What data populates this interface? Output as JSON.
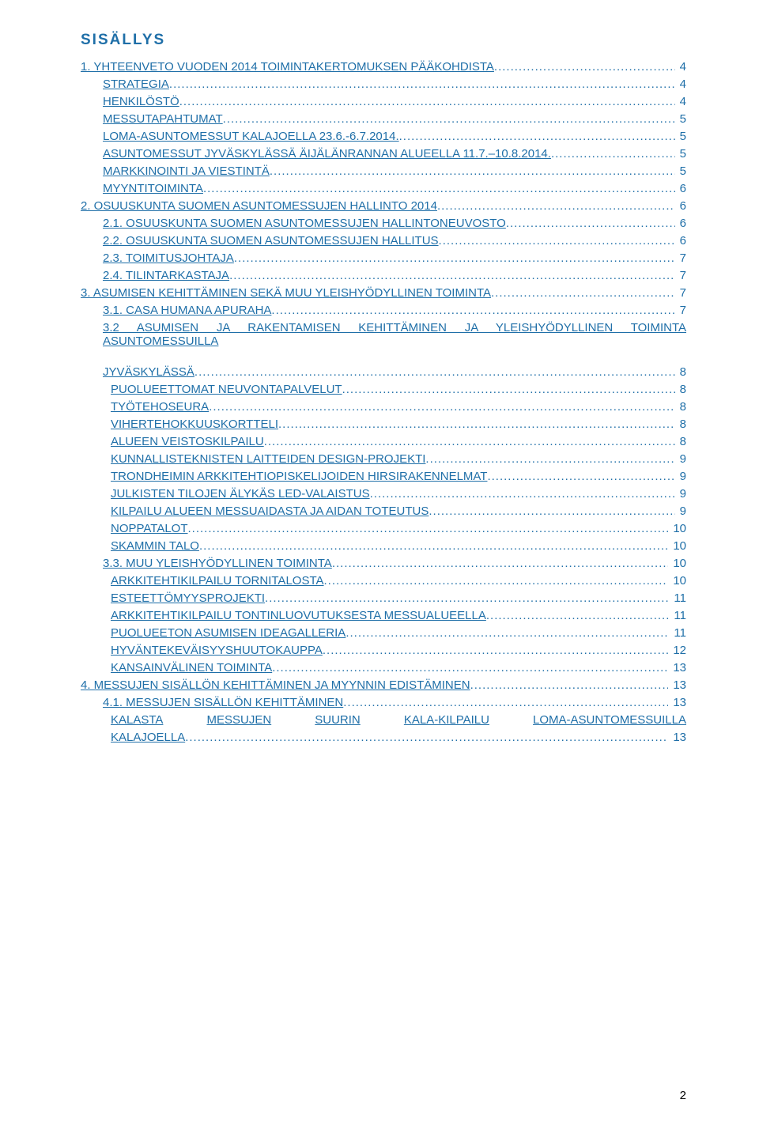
{
  "title": {
    "text": "SISÄLLYS",
    "color": "#1f6fa8",
    "fontsize": 19
  },
  "fontsize": 15,
  "lineheight": 1.1,
  "link_color": "#1f6fa8",
  "toc": [
    {
      "indent": 0,
      "label": "1.  YHTEENVETO VUODEN 2014 TOIMINTAKERTOMUKSEN PÄÄKOHDISTA",
      "page": "4"
    },
    {
      "indent": 1,
      "label": "STRATEGIA",
      "page": "4"
    },
    {
      "indent": 1,
      "label": "HENKILÖSTÖ",
      "page": "4"
    },
    {
      "indent": 1,
      "label": "MESSUTAPAHTUMAT",
      "page": "5"
    },
    {
      "indent": 1,
      "label": "LOMA-ASUNTOMESSUT KALAJOELLA 23.6.-6.7.2014.",
      "page": "5"
    },
    {
      "indent": 1,
      "label": "ASUNTOMESSUT JYVÄSKYLÄSSÄ ÄIJÄLÄNRANNAN ALUEELLA 11.7.–10.8.2014. ",
      "page": "5"
    },
    {
      "indent": 1,
      "label": "MARKKINOINTI JA VIESTINTÄ",
      "page": "5"
    },
    {
      "indent": 1,
      "label": "MYYNTITOIMINTA",
      "page": "6"
    },
    {
      "indent": 0,
      "label": "2.  OSUUSKUNTA SUOMEN ASUNTOMESSUJEN HALLINTO 2014",
      "page": "6"
    },
    {
      "indent": 1,
      "label": "2.1. OSUUSKUNTA SUOMEN ASUNTOMESSUJEN HALLINTONEUVOSTO",
      "page": "6"
    },
    {
      "indent": 1,
      "label": "2.2. OSUUSKUNTA SUOMEN ASUNTOMESSUJEN HALLITUS",
      "page": "6"
    },
    {
      "indent": 1,
      "label": "2.3. TOIMITUSJOHTAJA",
      "page": "7"
    },
    {
      "indent": 1,
      "label": "2.4. TILINTARKASTAJA",
      "page": "7"
    },
    {
      "indent": 0,
      "label": "3.  ASUMISEN KEHITTÄMINEN SEKÄ MUU YLEISHYÖDYLLINEN TOIMINTA",
      "page": "7"
    },
    {
      "indent": 1,
      "label": "3.1. CASA HUMANA APURAHA",
      "page": "7"
    },
    {
      "indent": 1,
      "label_pre": "3.2",
      "label2": "ASUMISEN JA RAKENTAMISEN KEHITTÄMINEN JA YLEISHYÖDYLLINEN TOIMINTA ASUNTOMESSUILLA JYVÄSKYLÄSSÄ",
      "page": "8",
      "multiline": true
    },
    {
      "indent": 2,
      "label": "PUOLUEETTOMAT NEUVONTAPALVELUT",
      "page": "8"
    },
    {
      "indent": 2,
      "label": "TYÖTEHOSEURA",
      "page": "8"
    },
    {
      "indent": 2,
      "label": "VIHERTEHOKKUUSKORTTELI",
      "page": "8"
    },
    {
      "indent": 2,
      "label": "ALUEEN VEISTOSKILPAILU",
      "page": "8"
    },
    {
      "indent": 2,
      "label": "KUNNALLISTEKNISTEN LAITTEIDEN DESIGN-PROJEKTI",
      "page": "9"
    },
    {
      "indent": 2,
      "label": "TRONDHEIMIN ARKKITEHTIOPISKELIJOIDEN HIRSIRAKENNELMAT",
      "page": "9"
    },
    {
      "indent": 2,
      "label": "JULKISTEN TILOJEN ÄLYKÄS LED-VALAISTUS",
      "page": "9"
    },
    {
      "indent": 2,
      "label": "KILPAILU ALUEEN MESSUAIDASTA JA AIDAN TOTEUTUS",
      "page": "9"
    },
    {
      "indent": 2,
      "label": "NOPPATALOT",
      "page": "10"
    },
    {
      "indent": 2,
      "label": "SKAMMIN TALO",
      "page": "10"
    },
    {
      "indent": 1,
      "label": "3.3. MUU YLEISHYÖDYLLINEN TOIMINTA",
      "page": "10"
    },
    {
      "indent": 2,
      "label": "ARKKITEHTIKILPAILU TORNITALOSTA",
      "page": "10"
    },
    {
      "indent": 2,
      "label": "ESTEETTÖMYYSPROJEKTI",
      "page": "11"
    },
    {
      "indent": 2,
      "label": "ARKKITEHTIKILPAILU TONTINLUOVUTUKSESTA MESSUALUEELLA",
      "page": "11"
    },
    {
      "indent": 2,
      "label": "PUOLUEETON ASUMISEN IDEAGALLERIA",
      "page": "11"
    },
    {
      "indent": 2,
      "label": "HYVÄNTEKEVÄISYYSHUUTOKAUPPA",
      "page": "12"
    },
    {
      "indent": 2,
      "label": "KANSAINVÄLINEN TOIMINTA",
      "page": "13"
    },
    {
      "indent": 0,
      "label": "4.  MESSUJEN SISÄLLÖN KEHITTÄMINEN JA MYYNNIN EDISTÄMINEN",
      "page": "13"
    },
    {
      "indent": 1,
      "label": "4.1. MESSUJEN SISÄLLÖN KEHITTÄMINEN",
      "page": "13"
    },
    {
      "indent": 2,
      "words": [
        "KALASTA",
        "MESSUJEN",
        "SUURIN",
        "KALA-KILPAILU",
        "LOMA-ASUNTOMESSUILLA"
      ],
      "label2line": "KALAJOELLA",
      "page": "13",
      "justified": true
    }
  ],
  "page_number": "2"
}
